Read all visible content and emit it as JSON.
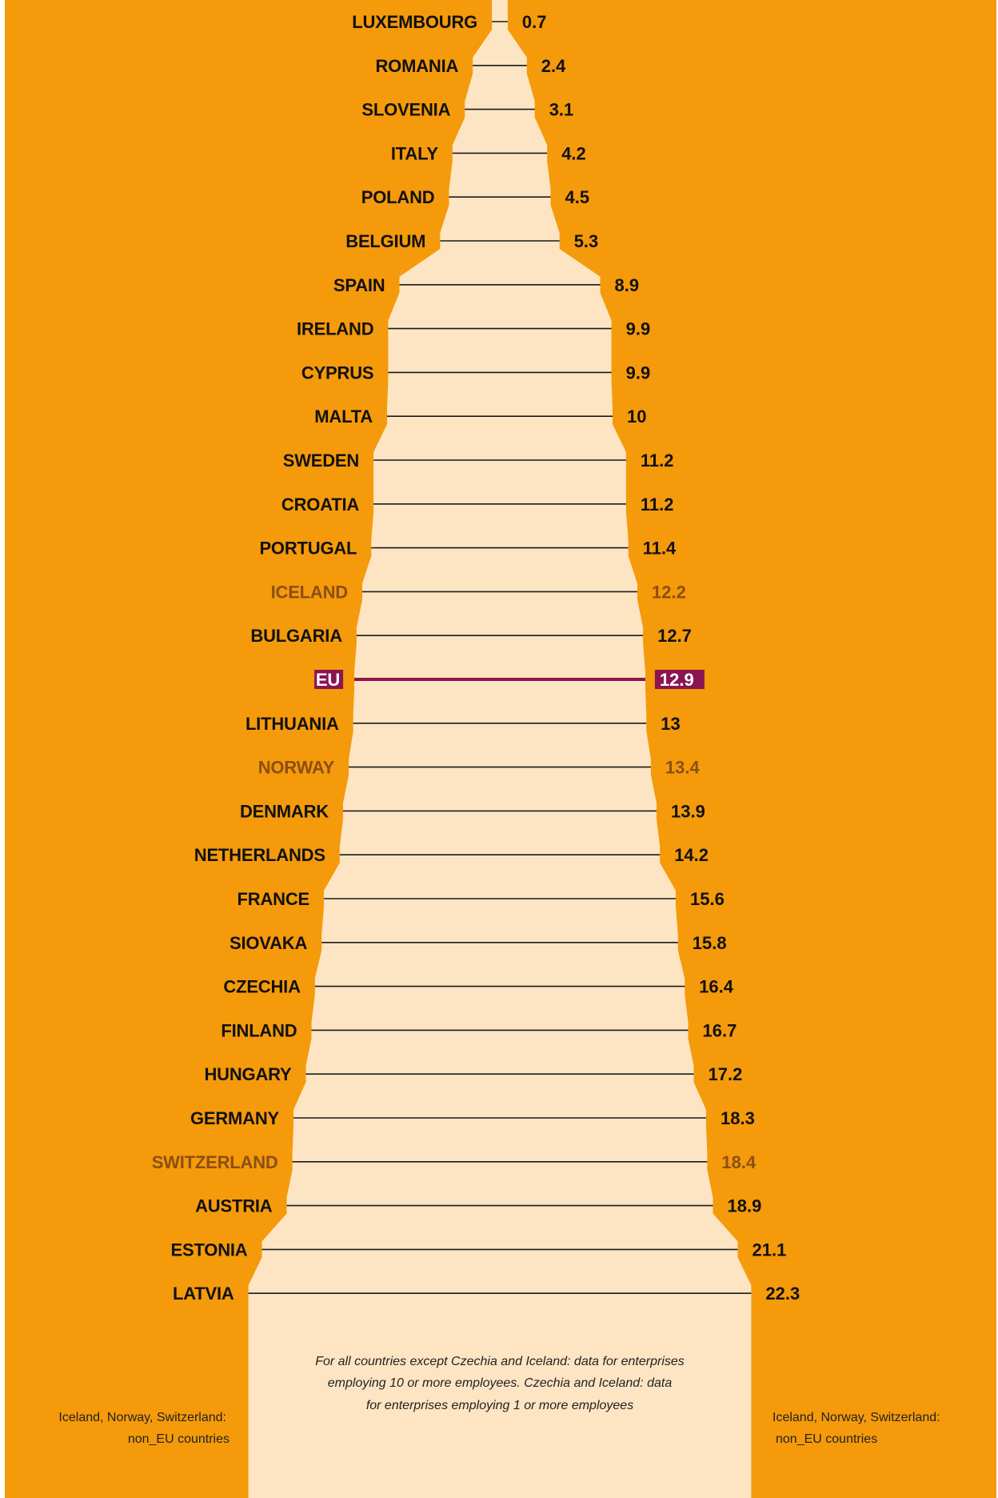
{
  "colors": {
    "background": "#f59a0a",
    "shape": "#fde5c3",
    "eu_state": "#111111",
    "non_eu": "#8a4f12",
    "eu_average": "#8b1550",
    "eu_label_text": "#ffffff"
  },
  "chart_data": {
    "type": "bar",
    "orientation": "horizontal-symmetric",
    "categories": [
      "LUXEMBOURG",
      "ROMANIA",
      "SLOVENIA",
      "ITALY",
      "POLAND",
      "BELGIUM",
      "SPAIN",
      "IRELAND",
      "CYPRUS",
      "MALTA",
      "SWEDEN",
      "CROATIA",
      "PORTUGAL",
      "ICELAND",
      "BULGARIA",
      "EU",
      "LITHUANIA",
      "NORWAY",
      "DENMARK",
      "NETHERLANDS",
      "FRANCE",
      "SIOVAKA",
      "CZECHIA",
      "FINLAND",
      "HUNGARY",
      "GERMANY",
      "SWITZERLAND",
      "AUSTRIA",
      "ESTONIA",
      "LATVIA"
    ],
    "series": [
      {
        "values": [
          0.7,
          2.4,
          3.1,
          4.2,
          4.5,
          5.3,
          8.9,
          9.9,
          9.9,
          10,
          11.2,
          11.2,
          11.4,
          12.2,
          12.7,
          12.9,
          13,
          13.4,
          13.9,
          14.2,
          15.6,
          15.8,
          16.4,
          16.7,
          17.2,
          18.3,
          18.4,
          18.9,
          21.1,
          22.3
        ],
        "value_labels": [
          "0.7",
          "2.4",
          "3.1",
          "4.2",
          "4.5",
          "5.3",
          "8.9",
          "9.9",
          "9.9",
          "10",
          "11.2",
          "11.2",
          "11.4",
          "12.2",
          "12.7",
          "12.9",
          "13",
          "13.4",
          "13.9",
          "14.2",
          "15.6",
          "15.8",
          "16.4",
          "16.7",
          "17.2",
          "18.3",
          "18.4",
          "18.9",
          "21.1",
          "22.3"
        ]
      }
    ],
    "group": [
      "eu",
      "eu",
      "eu",
      "eu",
      "eu",
      "eu",
      "eu",
      "eu",
      "eu",
      "eu",
      "eu",
      "eu",
      "eu",
      "non_eu",
      "eu",
      "eu_average",
      "eu",
      "non_eu",
      "eu",
      "eu",
      "eu",
      "eu",
      "eu",
      "eu",
      "eu",
      "eu",
      "non_eu",
      "eu",
      "eu",
      "eu"
    ],
    "xlim": [
      0,
      22.3
    ],
    "title": "",
    "xlabel": "",
    "ylabel": ""
  },
  "notes": {
    "footnote_lines": [
      "For all countries except Czechia and Iceland: data for enterprises",
      "employing 10 or more employees. Czechia and Iceland: data",
      "for enterprises employing 1 or more employees"
    ],
    "left_note_lines": [
      "Iceland, Norway, Switzerland:",
      "non_EU countries"
    ],
    "right_note_lines": [
      "Iceland, Norway, Switzerland:",
      "non_EU countries"
    ]
  }
}
